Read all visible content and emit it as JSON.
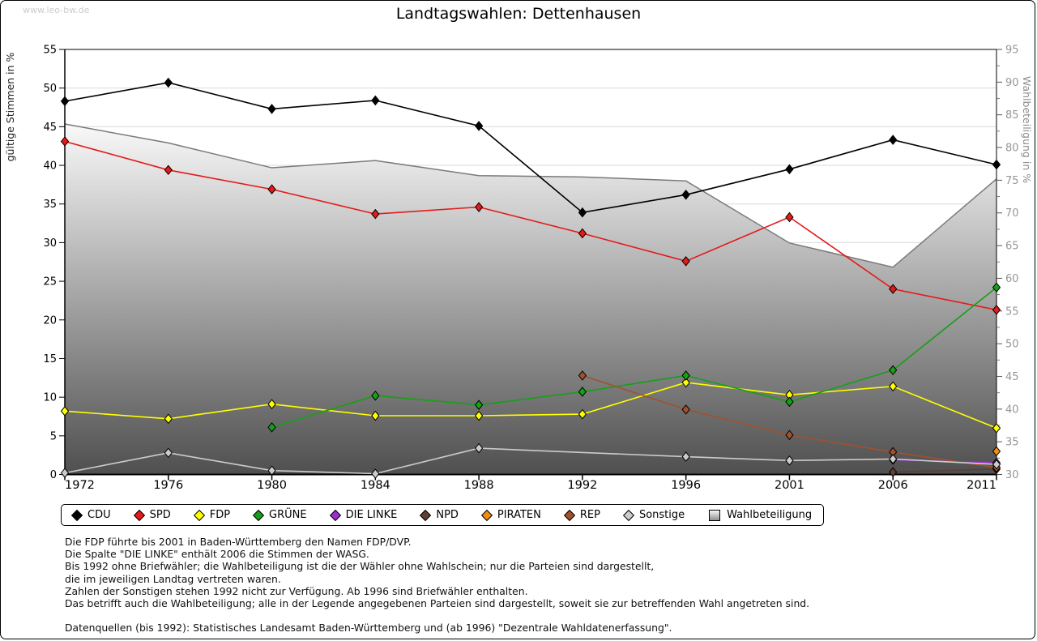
{
  "watermark": "www.leo-bw.de",
  "title": "Landtagswahlen: Dettenhausen",
  "chart_data": {
    "type": "line",
    "title": "Landtagswahlen: Dettenhausen",
    "x_categories": [
      "1972",
      "1976",
      "1980",
      "1984",
      "1988",
      "1992",
      "1996",
      "2001",
      "2006",
      "2011"
    ],
    "ylabel_left": "gültige Stimmen in %",
    "ylabel_right": "Wahlbeteiligung in %",
    "ylim_left": [
      0,
      55
    ],
    "ylim_right": [
      30,
      95
    ],
    "ytick_step": 5,
    "grid": true,
    "legend_position": "bottom",
    "grid_color": "#d9d9d9",
    "tick_color_left": "#000000",
    "tick_color_right": "#969696",
    "series": [
      {
        "name": "CDU",
        "axis": "left",
        "color": "#000000",
        "values": [
          48.3,
          50.7,
          47.3,
          48.4,
          45.1,
          33.9,
          36.2,
          39.5,
          43.3,
          40.1
        ]
      },
      {
        "name": "SPD",
        "axis": "left",
        "color": "#e41a1a",
        "values": [
          43.1,
          39.4,
          36.9,
          33.7,
          34.6,
          31.2,
          27.6,
          33.3,
          24.0,
          21.3
        ]
      },
      {
        "name": "FDP",
        "axis": "left",
        "color": "#ffff00",
        "values": [
          8.2,
          7.2,
          9.1,
          7.6,
          7.6,
          7.8,
          11.9,
          10.3,
          11.4,
          6.0
        ]
      },
      {
        "name": "GRÜNE",
        "axis": "left",
        "color": "#16a016",
        "values": [
          null,
          null,
          6.1,
          10.2,
          9.0,
          10.7,
          12.8,
          9.4,
          13.5,
          24.2
        ]
      },
      {
        "name": "DIE LINKE",
        "axis": "left",
        "color": "#9932cc",
        "values": [
          null,
          null,
          null,
          null,
          null,
          null,
          null,
          null,
          1.9,
          1.5
        ]
      },
      {
        "name": "NPD",
        "axis": "left",
        "color": "#5d4037",
        "values": [
          null,
          null,
          null,
          null,
          null,
          null,
          null,
          null,
          0.3,
          0.7
        ]
      },
      {
        "name": "PIRATEN",
        "axis": "left",
        "color": "#ee8f0f",
        "values": [
          null,
          null,
          null,
          null,
          null,
          null,
          null,
          null,
          null,
          3.0
        ]
      },
      {
        "name": "REP",
        "axis": "left",
        "color": "#a0522d",
        "values": [
          null,
          null,
          null,
          null,
          null,
          12.8,
          8.4,
          5.1,
          2.9,
          0.9
        ]
      },
      {
        "name": "Sonstige",
        "axis": "left",
        "color": "#cccccc",
        "values": [
          0.2,
          2.8,
          0.5,
          0.1,
          3.4,
          null,
          2.3,
          1.8,
          2.0,
          1.3
        ]
      },
      {
        "name": "Wahlbeteiligung",
        "axis": "right",
        "color": "#7a7a7a",
        "type": "area",
        "fill_top": "#fbfbfb",
        "fill_bottom": "#4f4f4f",
        "values": [
          83.6,
          80.7,
          76.9,
          78.0,
          75.7,
          75.5,
          74.9,
          65.4,
          61.7,
          75.2
        ]
      }
    ]
  },
  "footnotes": {
    "lines": [
      "Die FDP führte bis 2001 in Baden-Württemberg den Namen FDP/DVP.",
      "Die Spalte \"DIE LINKE\" enthält 2006 die Stimmen der WASG.",
      "Bis 1992 ohne Briefwähler; die Wahlbeteiligung ist die der Wähler ohne Wahlschein; nur die Parteien sind dargestellt,",
      "die im jeweiligen Landtag vertreten waren.",
      "Zahlen der Sonstigen stehen 1992 nicht zur Verfügung. Ab 1996 sind Briefwähler enthalten.",
      "Das betrifft auch die Wahlbeteiligung; alle in der Legende angegebenen Parteien sind dargestellt, soweit sie zur betreffenden Wahl angetreten sind.",
      "",
      "Datenquellen (bis 1992): Statistisches Landesamt Baden-Württemberg und (ab 1996) \"Dezentrale Wahldatenerfassung\"."
    ]
  }
}
